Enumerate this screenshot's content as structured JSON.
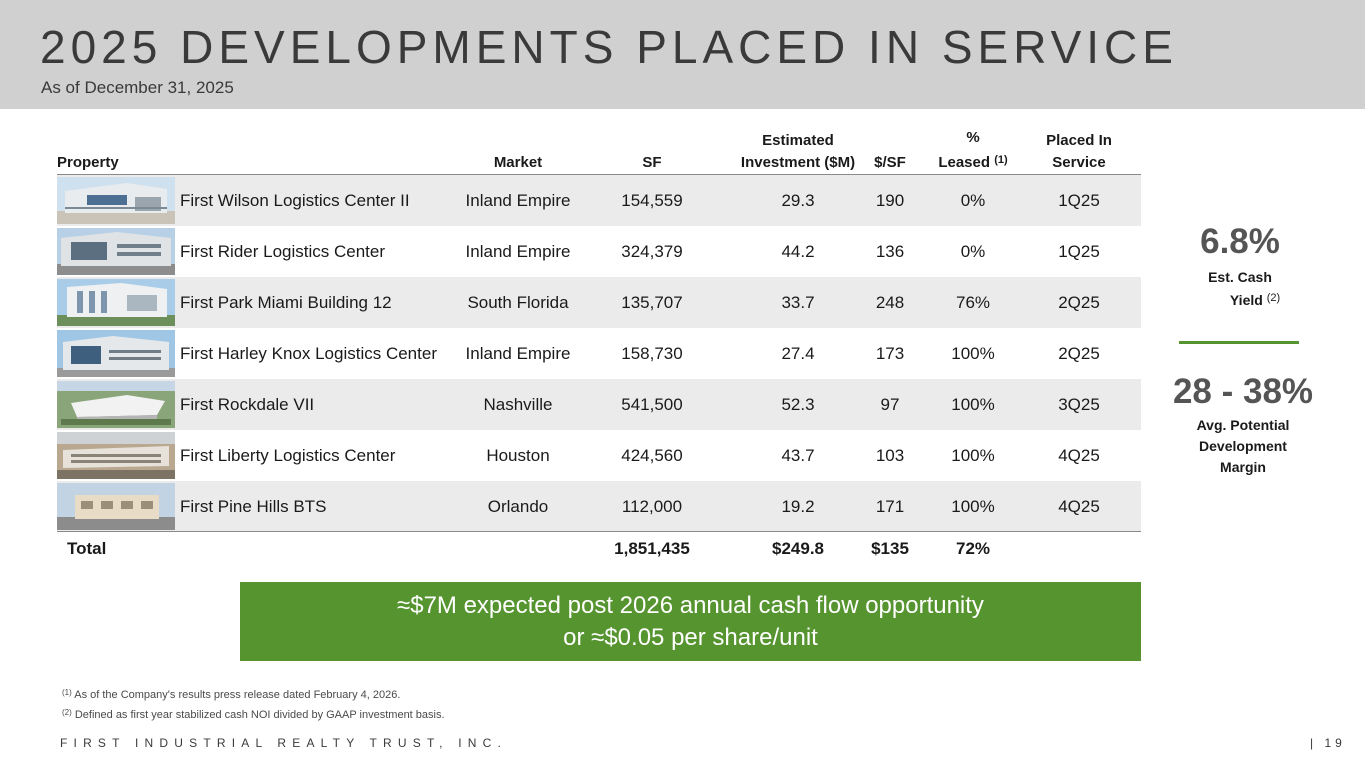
{
  "header": {
    "title": "2025 DEVELOPMENTS PLACED IN SERVICE",
    "subtitle": "As of December 31, 2025"
  },
  "table": {
    "headers": {
      "property": "Property",
      "market": "Market",
      "sf": "SF",
      "investment_1": "Estimated",
      "investment_2": "Investment ($M)",
      "psf": "$/SF",
      "leased_1": "%",
      "leased_2": "Leased",
      "leased_note": "(1)",
      "placed_1": "Placed In",
      "placed_2": "Service"
    },
    "rows": [
      {
        "property": "First Wilson Logistics Center II",
        "market": "Inland Empire",
        "sf": "154,559",
        "investment": "29.3",
        "psf": "190",
        "leased": "0%",
        "placed": "1Q25"
      },
      {
        "property": "First Rider Logistics Center",
        "market": "Inland Empire",
        "sf": "324,379",
        "investment": "44.2",
        "psf": "136",
        "leased": "0%",
        "placed": "1Q25"
      },
      {
        "property": "First Park Miami Building 12",
        "market": "South Florida",
        "sf": "135,707",
        "investment": "33.7",
        "psf": "248",
        "leased": "76%",
        "placed": "2Q25"
      },
      {
        "property": "First Harley Knox Logistics Center",
        "market": "Inland Empire",
        "sf": "158,730",
        "investment": "27.4",
        "psf": "173",
        "leased": "100%",
        "placed": "2Q25"
      },
      {
        "property": "First Rockdale VII",
        "market": "Nashville",
        "sf": "541,500",
        "investment": "52.3",
        "psf": "97",
        "leased": "100%",
        "placed": "3Q25"
      },
      {
        "property": "First Liberty Logistics Center",
        "market": "Houston",
        "sf": "424,560",
        "investment": "43.7",
        "psf": "103",
        "leased": "100%",
        "placed": "4Q25"
      },
      {
        "property": "First Pine Hills BTS",
        "market": "Orlando",
        "sf": "112,000",
        "investment": "19.2",
        "psf": "171",
        "leased": "100%",
        "placed": "4Q25"
      }
    ],
    "total": {
      "label": "Total",
      "sf": "1,851,435",
      "investment": "$249.8",
      "psf": "$135",
      "leased": "72%"
    }
  },
  "stats": {
    "yield_value": "6.8%",
    "yield_label_1": "Est. Cash",
    "yield_label_2": "Yield",
    "yield_note": "(2)",
    "margin_value": "28 - 38%",
    "margin_label_1": "Avg. Potential",
    "margin_label_2": "Development",
    "margin_label_3": "Margin"
  },
  "banner": {
    "line1": "≈$7M expected post 2026 annual cash flow opportunity",
    "line2": "or ≈$0.05 per share/unit"
  },
  "footnotes": {
    "note1_mark": "(1)",
    "note1": "As of the Company's results press release dated February 4, 2026.",
    "note2_mark": "(2)",
    "note2": "Defined as first year stabilized cash NOI divided by GAAP investment basis."
  },
  "footer": {
    "company": "FIRST INDUSTRIAL REALTY TRUST, INC.",
    "page": "| 19"
  },
  "colors": {
    "accent_green": "#56942f",
    "header_gray": "#d0d0d0",
    "row_shade": "#ebebeb"
  }
}
